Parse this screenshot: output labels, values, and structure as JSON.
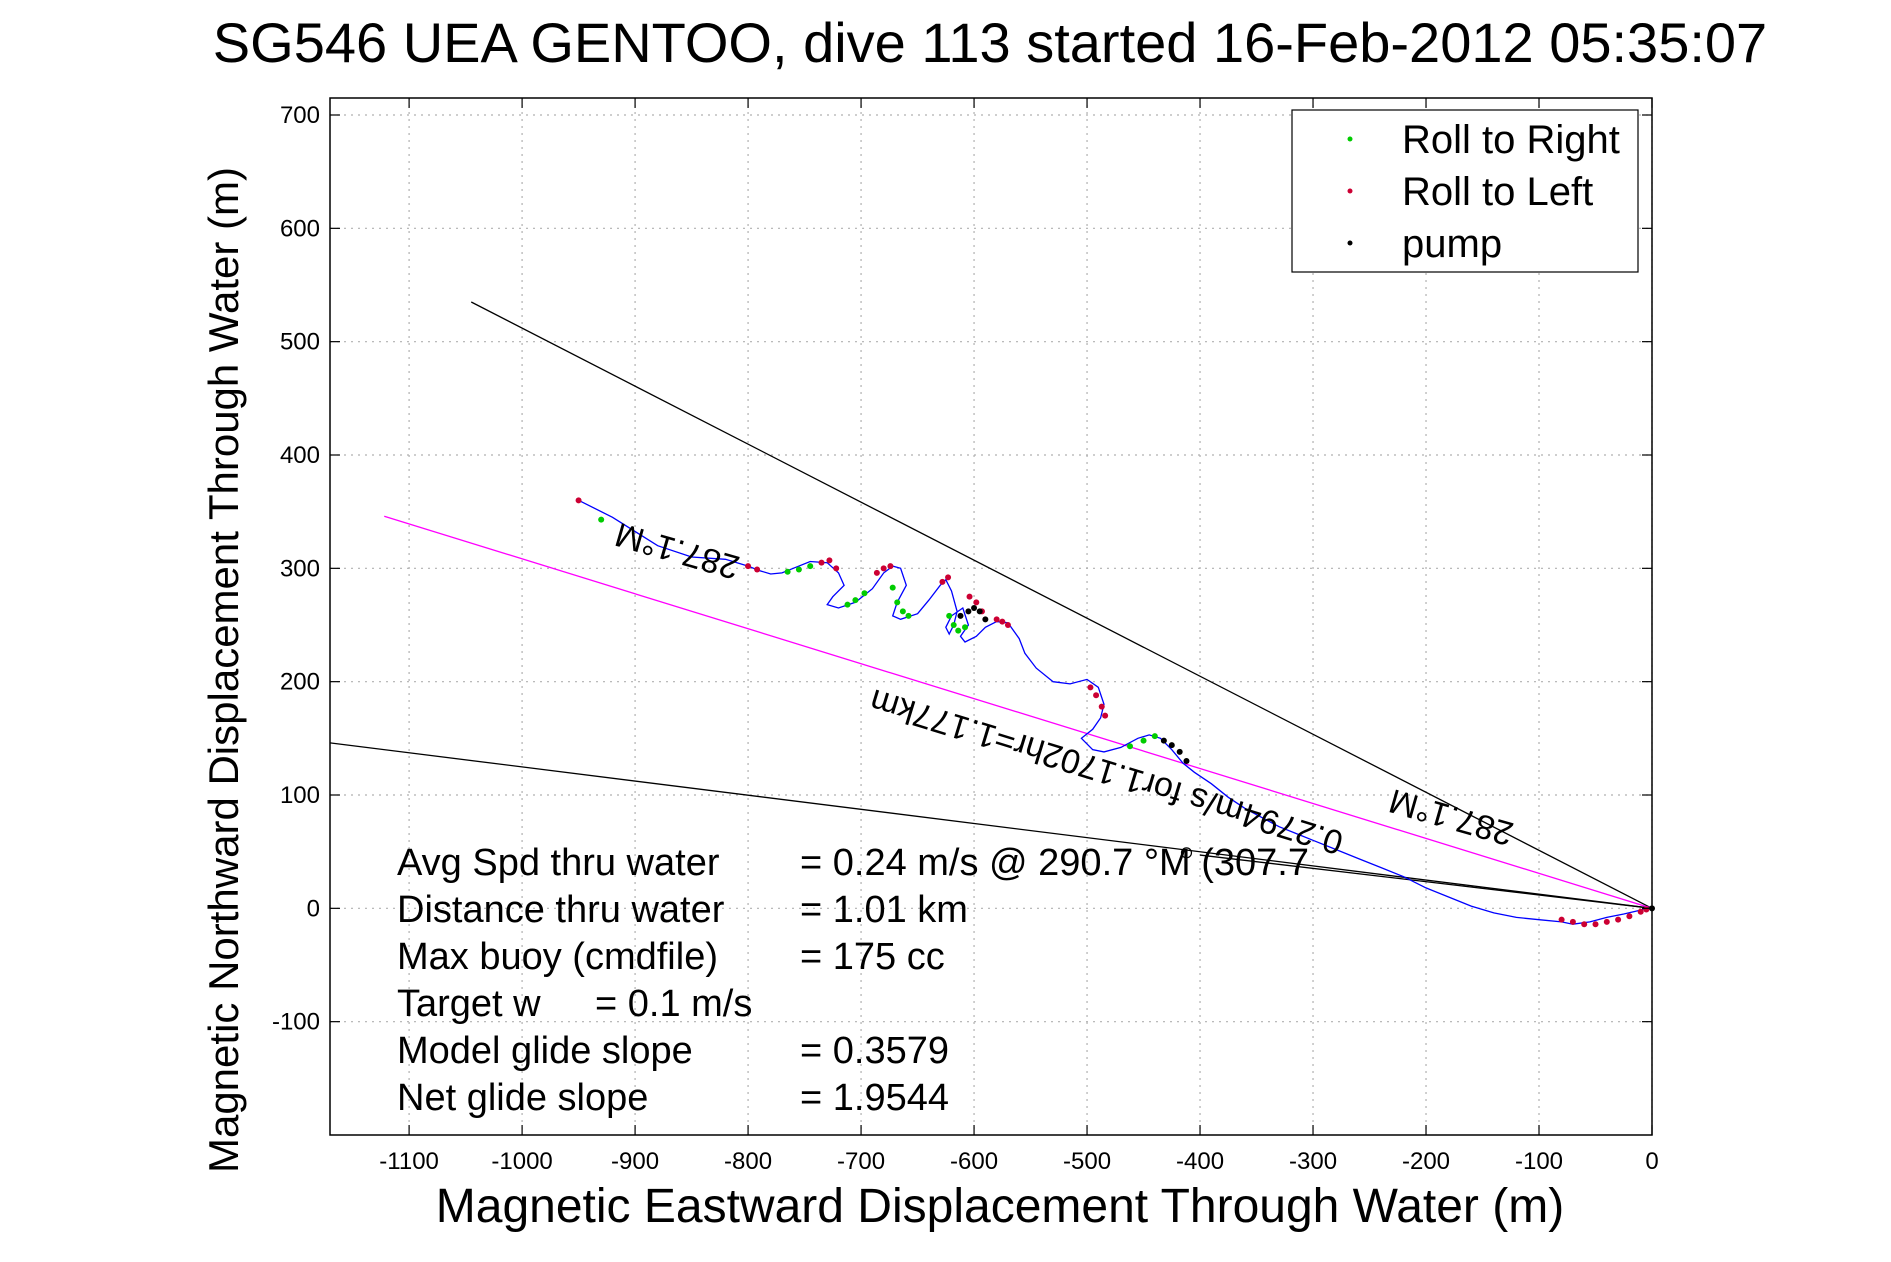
{
  "chart_data": {
    "type": "line",
    "title": "SG546 UEA GENTOO, dive 113 started 16-Feb-2012 05:35:07",
    "xlabel": "Magnetic Eastward Displacement Through Water (m)",
    "ylabel": "Magnetic Northward Displacement Through Water (m)",
    "xlim": [
      -1170,
      0
    ],
    "ylim": [
      -200,
      715
    ],
    "xticks": [
      -1100,
      -1000,
      -900,
      -800,
      -700,
      -600,
      -500,
      -400,
      -300,
      -200,
      -100,
      0
    ],
    "yticks": [
      -100,
      0,
      100,
      200,
      300,
      400,
      500,
      600,
      700
    ],
    "grid": true,
    "legend_position": "top-right",
    "legend": [
      {
        "label": "Roll to Right",
        "color": "#00cc00"
      },
      {
        "label": "Roll to Left",
        "color": "#cc0033"
      },
      {
        "label": "pump",
        "color": "#000000"
      }
    ],
    "track": {
      "name": "glider track",
      "color": "#0000ff",
      "x": [
        -950,
        -920,
        -880,
        -850,
        -820,
        -800,
        -790,
        -780,
        -770,
        -760,
        -745,
        -730,
        -720,
        -715,
        -725,
        -730,
        -720,
        -705,
        -690,
        -680,
        -672,
        -665,
        -660,
        -668,
        -672,
        -665,
        -650,
        -640,
        -630,
        -625,
        -620,
        -615,
        -618,
        -622,
        -625,
        -620,
        -610,
        -605,
        -612,
        -608,
        -598,
        -590,
        -580,
        -570,
        -560,
        -555,
        -545,
        -530,
        -515,
        -500,
        -490,
        -485,
        -488,
        -495,
        -505,
        -495,
        -485,
        -470,
        -455,
        -445,
        -435,
        -425,
        -415,
        -405,
        -390,
        -375,
        -360,
        -345,
        -330,
        -315,
        -300,
        -280,
        -260,
        -240,
        -220,
        -200,
        -180,
        -160,
        -140,
        -120,
        -100,
        -80,
        -70,
        -55,
        -40,
        -25,
        -12,
        -5,
        0
      ],
      "y": [
        360,
        345,
        320,
        310,
        308,
        302,
        298,
        295,
        296,
        300,
        306,
        305,
        296,
        285,
        275,
        268,
        265,
        270,
        282,
        296,
        302,
        300,
        285,
        270,
        258,
        255,
        260,
        272,
        285,
        290,
        280,
        262,
        250,
        242,
        248,
        258,
        265,
        250,
        240,
        235,
        240,
        248,
        253,
        252,
        238,
        225,
        212,
        200,
        198,
        202,
        195,
        180,
        168,
        158,
        150,
        140,
        138,
        142,
        150,
        153,
        150,
        140,
        128,
        120,
        110,
        98,
        88,
        80,
        72,
        66,
        60,
        52,
        44,
        36,
        28,
        18,
        10,
        2,
        -4,
        -8,
        -10,
        -12,
        -14,
        -12,
        -8,
        -5,
        -2,
        0,
        0
      ]
    },
    "roll_right_points": {
      "color": "#00cc00",
      "x": [
        -930,
        -765,
        -755,
        -745,
        -712,
        -705,
        -697,
        -672,
        -668,
        -663,
        -658,
        -622,
        -618,
        -614,
        -608,
        -462,
        -450,
        -440
      ],
      "y": [
        343,
        297,
        299,
        302,
        268,
        272,
        278,
        283,
        270,
        262,
        258,
        258,
        250,
        245,
        248,
        143,
        148,
        152
      ]
    },
    "roll_left_points": {
      "color": "#cc0033",
      "x": [
        -950,
        -800,
        -792,
        -735,
        -728,
        -722,
        -686,
        -680,
        -674,
        -628,
        -623,
        -604,
        -598,
        -593,
        -580,
        -575,
        -570,
        -497,
        -492,
        -487,
        -484,
        -80,
        -70,
        -60,
        -50,
        -40,
        -30,
        -20,
        -10,
        -5
      ],
      "y": [
        360,
        302,
        299,
        305,
        307,
        300,
        296,
        300,
        302,
        288,
        292,
        275,
        270,
        262,
        255,
        253,
        250,
        195,
        188,
        178,
        170,
        -10,
        -12,
        -14,
        -14,
        -12,
        -10,
        -7,
        -3,
        -1
      ],
      "anchor_first": true
    },
    "pump_points": {
      "color": "#000000",
      "x": [
        -612,
        -605,
        -600,
        -595,
        -590,
        -432,
        -425,
        -418,
        -412,
        0
      ],
      "y": [
        258,
        262,
        265,
        262,
        255,
        148,
        144,
        138,
        130,
        0
      ]
    },
    "reference_lines": [
      {
        "name": "upper-black-line",
        "color": "#000000",
        "x": [
          -1045,
          0
        ],
        "y": [
          535,
          0
        ]
      },
      {
        "name": "lower-black-line",
        "color": "#000000",
        "x": [
          -1170,
          0
        ],
        "y": [
          146,
          0
        ]
      },
      {
        "name": "magenta-line",
        "color": "#ff00ff",
        "x": [
          -1122,
          0
        ],
        "y": [
          346,
          0
        ]
      },
      {
        "name": "short-black-line",
        "color": "#000000",
        "x": [
          -400,
          0
        ],
        "y": [
          47,
          0
        ]
      }
    ],
    "annotations": [
      {
        "text": "287.1°M",
        "x": -860,
        "y": 325,
        "rotation": 196
      },
      {
        "text": "0.2794m/s for1.1702hr=1.177km",
        "x": -480,
        "y": 130,
        "rotation": 197
      },
      {
        "text": "287.1°M",
        "x": -175,
        "y": 90,
        "rotation": 196
      }
    ],
    "stats": [
      {
        "label": "Avg Spd thru water",
        "value": "=  0.24 m/s @ 290.7  °M (307.7"
      },
      {
        "label": "Distance thru water",
        "value": "=  1.01 km"
      },
      {
        "label": "Max buoy (cmdfile)",
        "value": "= 175 cc"
      },
      {
        "label": "Target w",
        "value": "= 0.1 m/s"
      },
      {
        "label": "Model glide slope",
        "value": "= 0.3579"
      },
      {
        "label": "Net glide slope",
        "value": "= 1.9544"
      }
    ]
  }
}
